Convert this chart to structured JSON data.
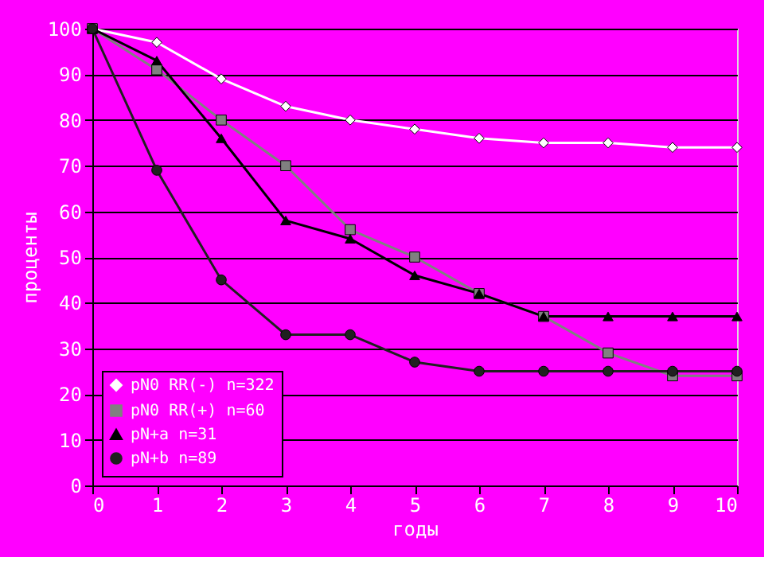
{
  "chart_data": {
    "type": "line",
    "xlabel": "годы",
    "ylabel": "проценты",
    "x": [
      0,
      1,
      2,
      3,
      4,
      5,
      6,
      7,
      8,
      9,
      10
    ],
    "xlim": [
      0,
      10
    ],
    "xticks": [
      0,
      1,
      2,
      3,
      4,
      5,
      6,
      7,
      8,
      9,
      10
    ],
    "ylim": [
      0,
      100
    ],
    "yticks": [
      0,
      10,
      20,
      30,
      40,
      50,
      60,
      70,
      80,
      90,
      100
    ],
    "grid": "y",
    "legend": "bottom left",
    "line_style": "solid",
    "series": [
      {
        "name": "pN0 RR(-) n=322",
        "color": "#ffffff",
        "marker": "diamond",
        "values": [
          100,
          97,
          89,
          83,
          80,
          78,
          76,
          75,
          75,
          74,
          74
        ]
      },
      {
        "name": "pN0 RR(+) n=60",
        "color": "#808080",
        "marker": "square",
        "values": [
          100,
          91,
          80,
          70,
          56,
          50,
          42,
          37,
          29,
          24,
          24
        ]
      },
      {
        "name": "pN+a n=31",
        "color": "#000000",
        "marker": "triangle",
        "values": [
          100,
          93,
          76,
          58,
          54,
          46,
          42,
          37,
          37,
          37,
          37
        ]
      },
      {
        "name": "pN+b n=89",
        "color": "#202020",
        "marker": "circle",
        "values": [
          100,
          69,
          45,
          33,
          33,
          27,
          25,
          25,
          25,
          25,
          25
        ]
      }
    ]
  }
}
